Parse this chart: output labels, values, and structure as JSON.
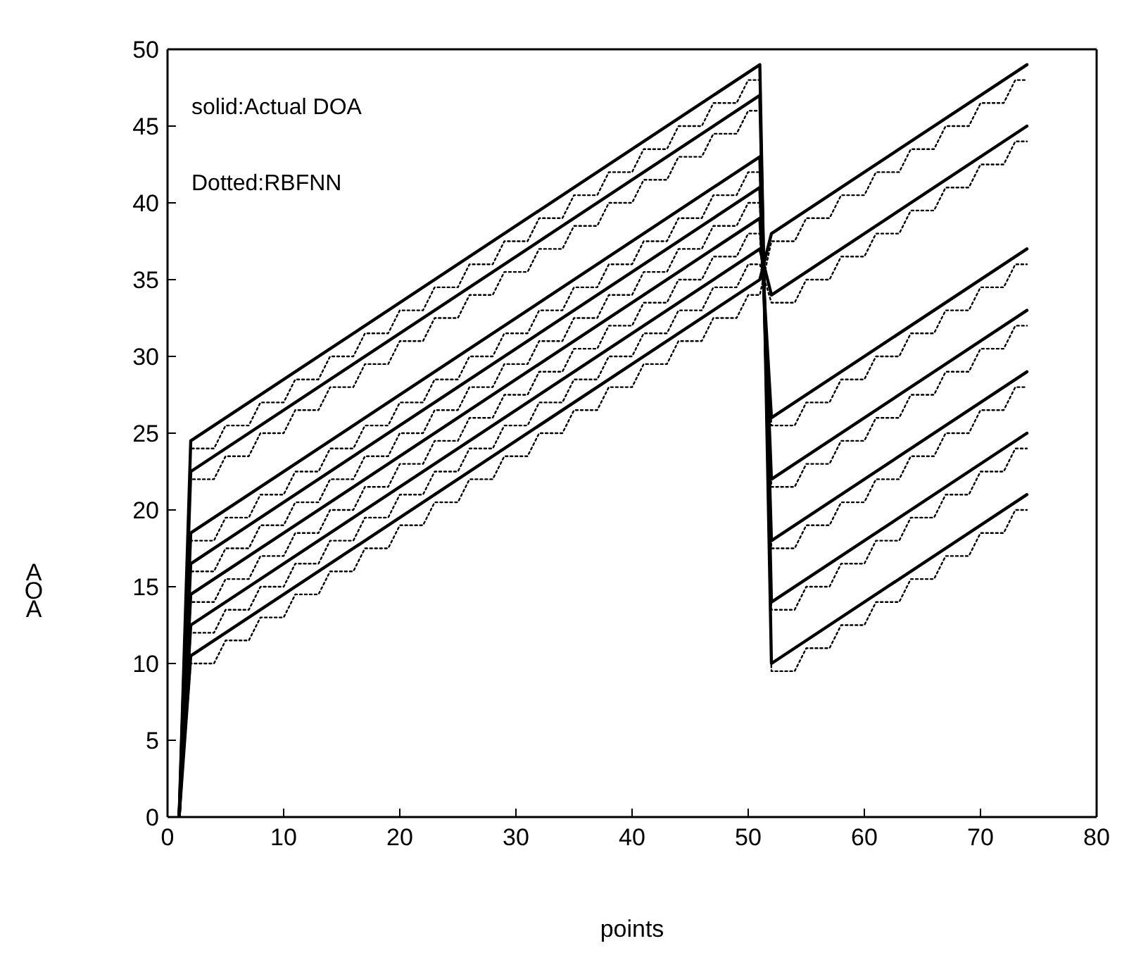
{
  "chart_data": {
    "type": "line",
    "xlabel": "points",
    "ylabel": "AOA",
    "annotations": [
      "solid:Actual DOA",
      "Dotted:RBFNN"
    ],
    "xlim": [
      0,
      80
    ],
    "xticks": [
      0,
      10,
      20,
      30,
      40,
      50,
      60,
      70,
      80
    ],
    "ylim": [
      0,
      50
    ],
    "yticks": [
      0,
      5,
      10,
      15,
      20,
      25,
      30,
      35,
      40,
      45,
      50
    ],
    "marker": "none",
    "x": [
      1,
      2,
      4,
      5,
      7,
      8,
      10,
      11,
      13,
      14,
      16,
      17,
      19,
      20,
      22,
      23,
      25,
      26,
      28,
      29,
      31,
      32,
      34,
      35,
      37,
      38,
      40,
      41,
      43,
      44,
      46,
      47,
      49,
      50,
      51,
      52,
      54,
      55,
      57,
      58,
      60,
      61,
      63,
      64,
      66,
      67,
      69,
      70,
      72,
      73,
      74
    ],
    "series": [
      {
        "color": "#000000",
        "line_style": "solid",
        "x": [
          1,
          2,
          51,
          52,
          74
        ],
        "values": [
          0,
          24.5,
          49,
          10,
          21
        ]
      },
      {
        "color": "#000000",
        "line_style": "solid",
        "x": [
          1,
          2,
          51,
          52,
          74
        ],
        "values": [
          0,
          22.5,
          47,
          14,
          25
        ]
      },
      {
        "color": "#000000",
        "line_style": "solid",
        "x": [
          1,
          2,
          51,
          52,
          74
        ],
        "values": [
          0,
          18.5,
          43,
          18,
          29
        ]
      },
      {
        "color": "#000000",
        "line_style": "solid",
        "x": [
          1,
          2,
          51,
          52,
          74
        ],
        "values": [
          0,
          16.5,
          41,
          22,
          33
        ]
      },
      {
        "color": "#000000",
        "line_style": "solid",
        "x": [
          1,
          2,
          51,
          52,
          74
        ],
        "values": [
          0,
          14.5,
          39,
          26,
          37
        ]
      },
      {
        "color": "#000000",
        "line_style": "solid",
        "x": [
          1,
          2,
          51,
          52,
          74
        ],
        "values": [
          0,
          12.5,
          37,
          34,
          45
        ]
      },
      {
        "color": "#000000",
        "line_style": "solid",
        "x": [
          1,
          2,
          51,
          52,
          74
        ],
        "values": [
          0,
          10.5,
          35,
          38,
          49
        ]
      },
      {
        "color": "#000000",
        "line_style": "dotted",
        "values": [
          0,
          24,
          24,
          25.5,
          25.5,
          27,
          27,
          28.5,
          28.5,
          30,
          30,
          31.5,
          31.5,
          33,
          33,
          34.5,
          34.5,
          36,
          36,
          37.5,
          37.5,
          39,
          39,
          40.5,
          40.5,
          42,
          42,
          43.5,
          43.5,
          45,
          45,
          46.5,
          46.5,
          48,
          48,
          9.5,
          9.5,
          11,
          11,
          12.5,
          12.5,
          14,
          14,
          15.5,
          15.5,
          17,
          17,
          18.5,
          18.5,
          20,
          20
        ]
      },
      {
        "color": "#000000",
        "line_style": "dotted",
        "values": [
          0,
          22,
          22,
          23.5,
          23.5,
          25,
          25,
          26.5,
          26.5,
          28,
          28,
          29.5,
          29.5,
          31,
          31,
          32.5,
          32.5,
          34,
          34,
          35.5,
          35.5,
          37,
          37,
          38.5,
          38.5,
          40,
          40,
          41.5,
          41.5,
          43,
          43,
          44.5,
          44.5,
          46,
          46,
          13.5,
          13.5,
          15,
          15,
          16.5,
          16.5,
          18,
          18,
          19.5,
          19.5,
          21,
          21,
          22.5,
          22.5,
          24,
          24
        ]
      },
      {
        "color": "#000000",
        "line_style": "dotted",
        "values": [
          0,
          18,
          18,
          19.5,
          19.5,
          21,
          21,
          22.5,
          22.5,
          24,
          24,
          25.5,
          25.5,
          27,
          27,
          28.5,
          28.5,
          30,
          30,
          31.5,
          31.5,
          33,
          33,
          34.5,
          34.5,
          36,
          36,
          37.5,
          37.5,
          39,
          39,
          40.5,
          40.5,
          42,
          42,
          17.5,
          17.5,
          19,
          19,
          20.5,
          20.5,
          22,
          22,
          23.5,
          23.5,
          25,
          25,
          26.5,
          26.5,
          28,
          28
        ]
      },
      {
        "color": "#000000",
        "line_style": "dotted",
        "values": [
          0,
          16,
          16,
          17.5,
          17.5,
          19,
          19,
          20.5,
          20.5,
          22,
          22,
          23.5,
          23.5,
          25,
          25,
          26.5,
          26.5,
          28,
          28,
          29.5,
          29.5,
          31,
          31,
          32.5,
          32.5,
          34,
          34,
          35.5,
          35.5,
          37,
          37,
          38.5,
          38.5,
          40,
          40,
          21.5,
          21.5,
          23,
          23,
          24.5,
          24.5,
          26,
          26,
          27.5,
          27.5,
          29,
          29,
          30.5,
          30.5,
          32,
          32
        ]
      },
      {
        "color": "#000000",
        "line_style": "dotted",
        "values": [
          0,
          14,
          14,
          15.5,
          15.5,
          17,
          17,
          18.5,
          18.5,
          20,
          20,
          21.5,
          21.5,
          23,
          23,
          24.5,
          24.5,
          26,
          26,
          27.5,
          27.5,
          29,
          29,
          30.5,
          30.5,
          32,
          32,
          33.5,
          33.5,
          35,
          35,
          36.5,
          36.5,
          38,
          38,
          25.5,
          25.5,
          27,
          27,
          28.5,
          28.5,
          30,
          30,
          31.5,
          31.5,
          33,
          33,
          34.5,
          34.5,
          36,
          36
        ]
      },
      {
        "color": "#000000",
        "line_style": "dotted",
        "values": [
          0,
          12,
          12,
          13.5,
          13.5,
          15,
          15,
          16.5,
          16.5,
          18,
          18,
          19.5,
          19.5,
          21,
          21,
          22.5,
          22.5,
          24,
          24,
          25.5,
          25.5,
          27,
          27,
          28.5,
          28.5,
          30,
          30,
          31.5,
          31.5,
          33,
          33,
          34.5,
          34.5,
          36,
          36,
          33.5,
          33.5,
          35,
          35,
          36.5,
          36.5,
          38,
          38,
          39.5,
          39.5,
          41,
          41,
          42.5,
          42.5,
          44,
          44
        ]
      },
      {
        "color": "#000000",
        "line_style": "dotted",
        "values": [
          0,
          10,
          10,
          11.5,
          11.5,
          13,
          13,
          14.5,
          14.5,
          16,
          16,
          17.5,
          17.5,
          19,
          19,
          20.5,
          20.5,
          22,
          22,
          23.5,
          23.5,
          25,
          25,
          26.5,
          26.5,
          28,
          28,
          29.5,
          29.5,
          31,
          31,
          32.5,
          32.5,
          34,
          34,
          37.5,
          37.5,
          39,
          39,
          40.5,
          40.5,
          42,
          42,
          43.5,
          43.5,
          45,
          45,
          46.5,
          46.5,
          48,
          48
        ]
      }
    ]
  }
}
